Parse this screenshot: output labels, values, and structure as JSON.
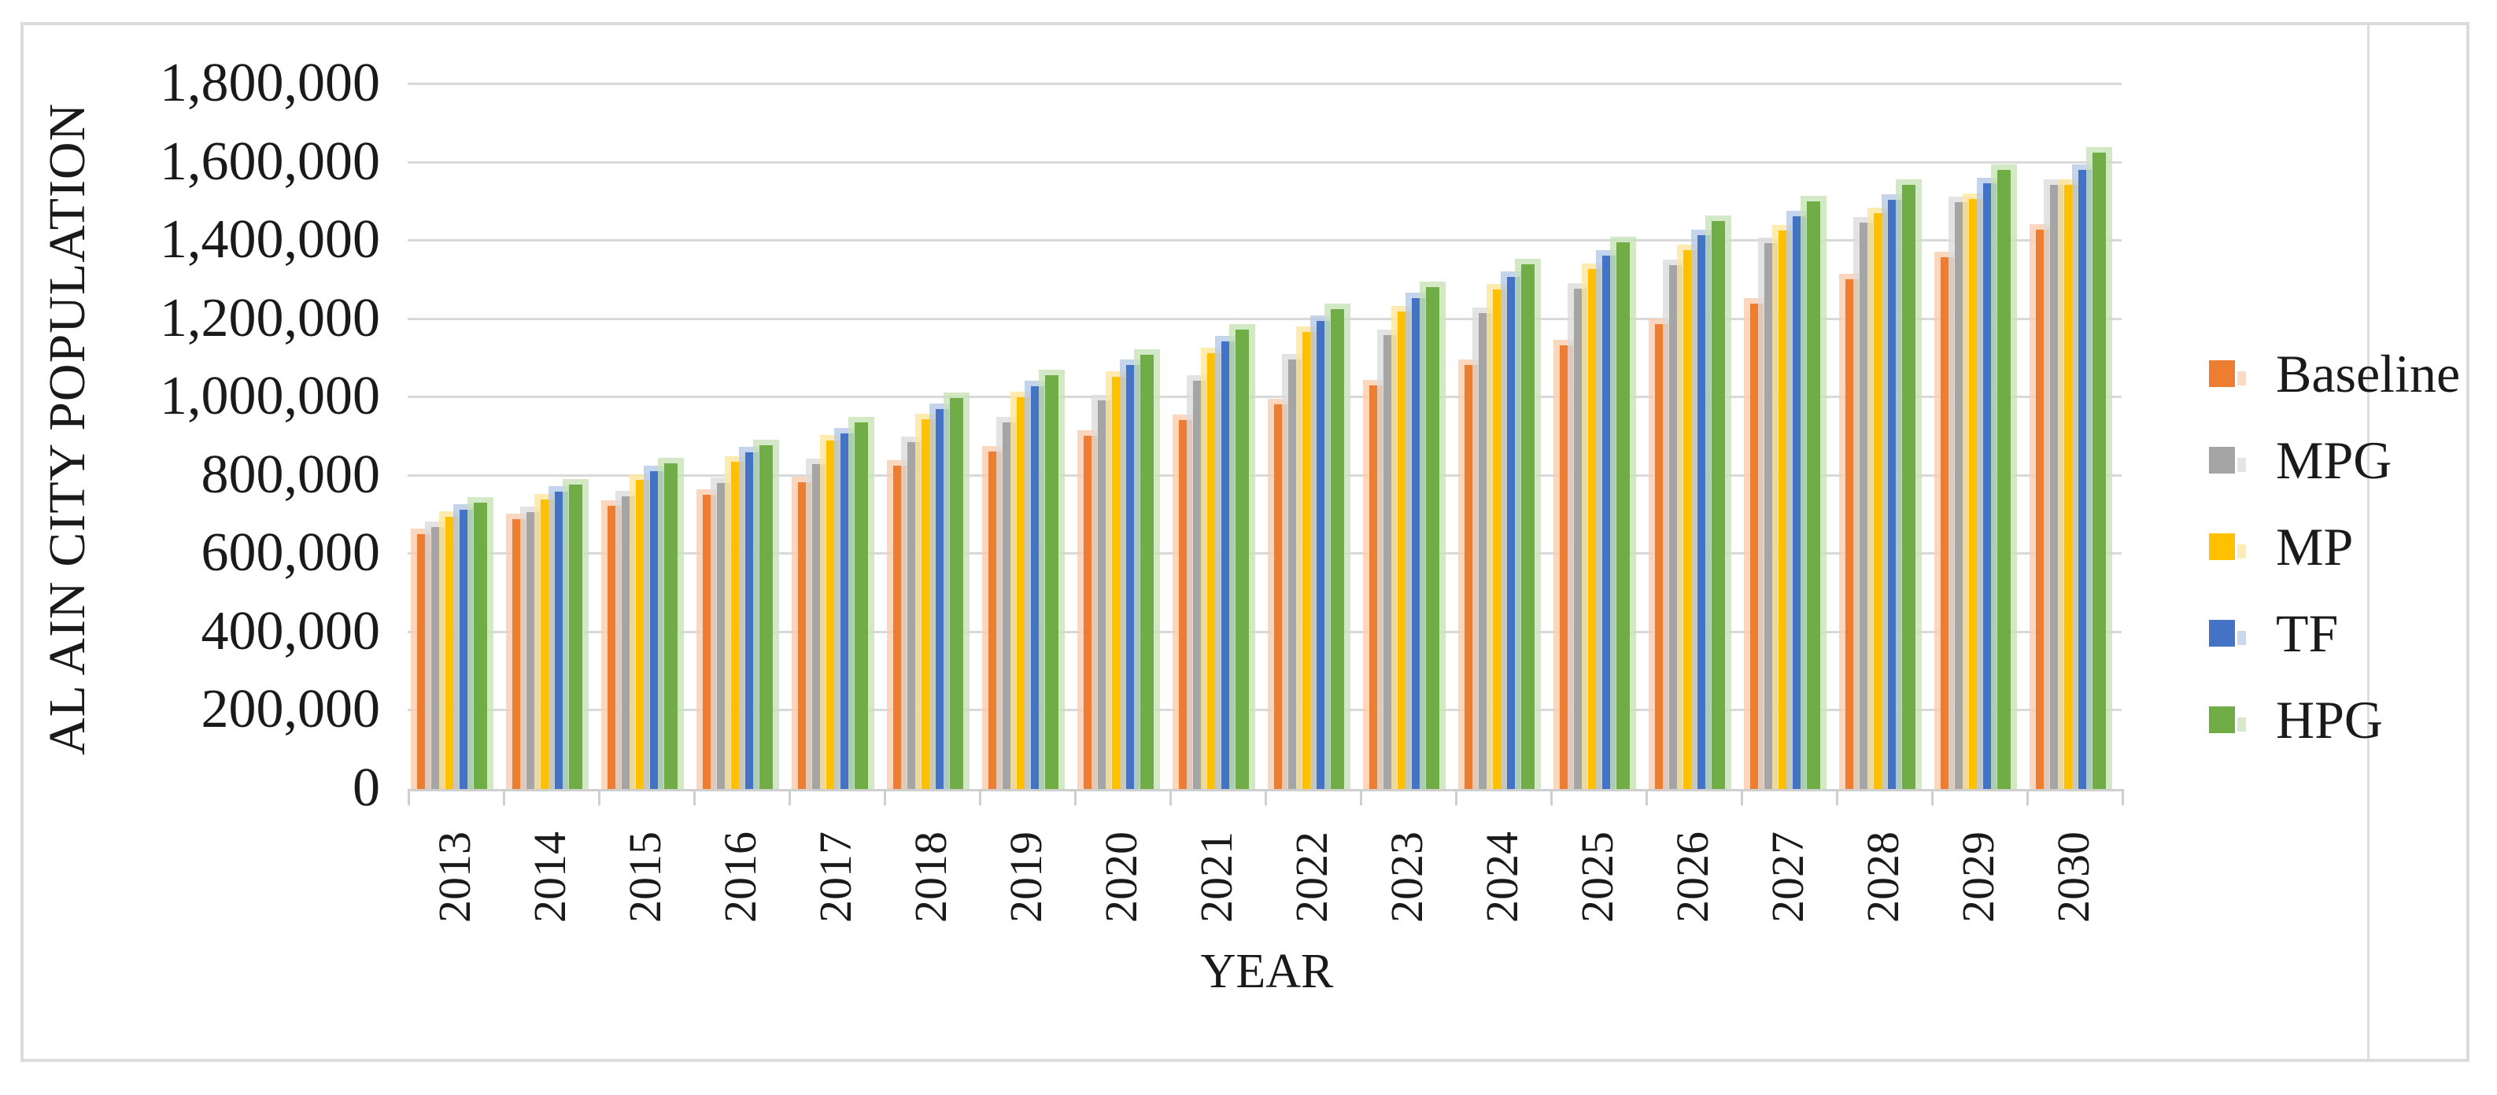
{
  "chart_data": {
    "type": "bar",
    "title": "",
    "xlabel": "YEAR",
    "ylabel": "AL AIN CITY POPULATION",
    "categories": [
      "2013",
      "2014",
      "2015",
      "2016",
      "2017",
      "2018",
      "2019",
      "2020",
      "2021",
      "2022",
      "2023",
      "2024",
      "2025",
      "2026",
      "2027",
      "2028",
      "2029",
      "2030"
    ],
    "series": [
      {
        "name": "Baseline",
        "color": "#ED7D31",
        "tint": "#FBCDB0",
        "values": [
          650000,
          690000,
          723000,
          752000,
          784000,
          825000,
          862000,
          903000,
          942000,
          982000,
          1031000,
          1082000,
          1133000,
          1187000,
          1240000,
          1302000,
          1359000,
          1428000
        ]
      },
      {
        "name": "MPG",
        "color": "#A5A5A5",
        "tint": "#DCDCDC",
        "values": [
          668000,
          707000,
          747000,
          781000,
          830000,
          885000,
          937000,
          993000,
          1043000,
          1097000,
          1160000,
          1215000,
          1278000,
          1338000,
          1394000,
          1446000,
          1498000,
          1542000
        ]
      },
      {
        "name": "MP",
        "color": "#FFC000",
        "tint": "#FFE59B",
        "values": [
          695000,
          739000,
          789000,
          835000,
          890000,
          944000,
          1000000,
          1053000,
          1112000,
          1167000,
          1220000,
          1275000,
          1328000,
          1376000,
          1427000,
          1470000,
          1506000,
          1542000
        ]
      },
      {
        "name": "TF",
        "color": "#4472C4",
        "tint": "#B7C9E9",
        "values": [
          714000,
          759000,
          811000,
          859000,
          909000,
          971000,
          1029000,
          1083000,
          1143000,
          1196000,
          1254000,
          1308000,
          1362000,
          1415000,
          1463000,
          1504000,
          1546000,
          1582000
        ]
      },
      {
        "name": "HPG",
        "color": "#70AD47",
        "tint": "#C8E2B5",
        "values": [
          731000,
          777000,
          831000,
          878000,
          937000,
          998000,
          1056000,
          1108000,
          1173000,
          1226000,
          1281000,
          1340000,
          1397000,
          1451000,
          1500000,
          1542000,
          1582000,
          1625000
        ]
      }
    ],
    "y_axis": {
      "min": 0,
      "max": 1800000,
      "step": 200000,
      "tick_labels": [
        "0",
        "200,000",
        "400,000",
        "600,000",
        "800,000",
        "1,000,000",
        "1,200,000",
        "1,400,000",
        "1,600,000",
        "1,800,000"
      ]
    },
    "legend": {
      "position": "right",
      "items": [
        "Baseline",
        "MPG",
        "MP",
        "TF",
        "HPG"
      ]
    },
    "grid": "horizontal",
    "colors": {
      "gridline": "#D9D9D9",
      "axis": "#CFCFCF",
      "border": "#DCDCDC",
      "text": "#1A1A1A"
    }
  }
}
